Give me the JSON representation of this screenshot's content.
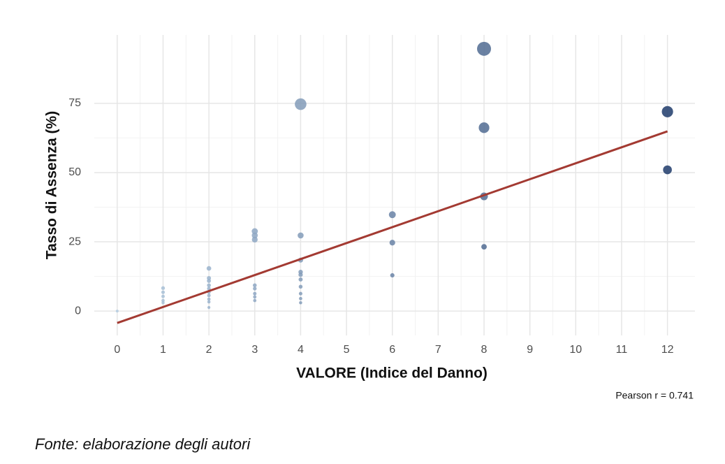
{
  "chart_data": {
    "type": "scatter",
    "xlabel": "VALORE (Indice del Danno)",
    "ylabel": "Tasso di Assenza (%)",
    "annotation": "Pearson r = 0.741",
    "source": "Fonte: elaborazione degli autori",
    "xlim": [
      -0.5,
      12.6
    ],
    "ylim": [
      -8.8,
      99.7
    ],
    "xticks": [
      0,
      1,
      2,
      3,
      4,
      5,
      6,
      7,
      8,
      9,
      10,
      11,
      12
    ],
    "yticks": [
      0,
      25,
      50,
      75
    ],
    "grid": true,
    "minor_grid": true,
    "color_low": "#b3cbe0",
    "color_high": "#1f3b6b",
    "series": [
      {
        "x": [
          0,
          1,
          1,
          1,
          1,
          1,
          2,
          2,
          2,
          2,
          2,
          2,
          2,
          2,
          2,
          2,
          3,
          3,
          3,
          3,
          3,
          3,
          3,
          3,
          4,
          4,
          4,
          4,
          4,
          4,
          4,
          4,
          4,
          4,
          6,
          6,
          6,
          8,
          8,
          8,
          8,
          12,
          12
        ],
        "values": [
          0,
          8.3,
          6.8,
          5.3,
          3.8,
          3.0,
          15.4,
          11.9,
          10.9,
          9.3,
          8.1,
          6.8,
          5.6,
          4.3,
          3.3,
          1.3,
          28.8,
          27.3,
          25.8,
          9.3,
          8.1,
          6.3,
          5.1,
          3.8,
          74.7,
          27.3,
          18.4,
          14.1,
          13.1,
          11.4,
          8.8,
          6.3,
          4.5,
          3.0,
          34.8,
          24.7,
          12.9,
          94.7,
          66.2,
          41.4,
          23.2,
          72.0,
          51.0
        ]
      }
    ],
    "trend": {
      "color": "#a33a32",
      "x": [
        0,
        12
      ],
      "values": [
        -4.3,
        64.9
      ]
    }
  }
}
